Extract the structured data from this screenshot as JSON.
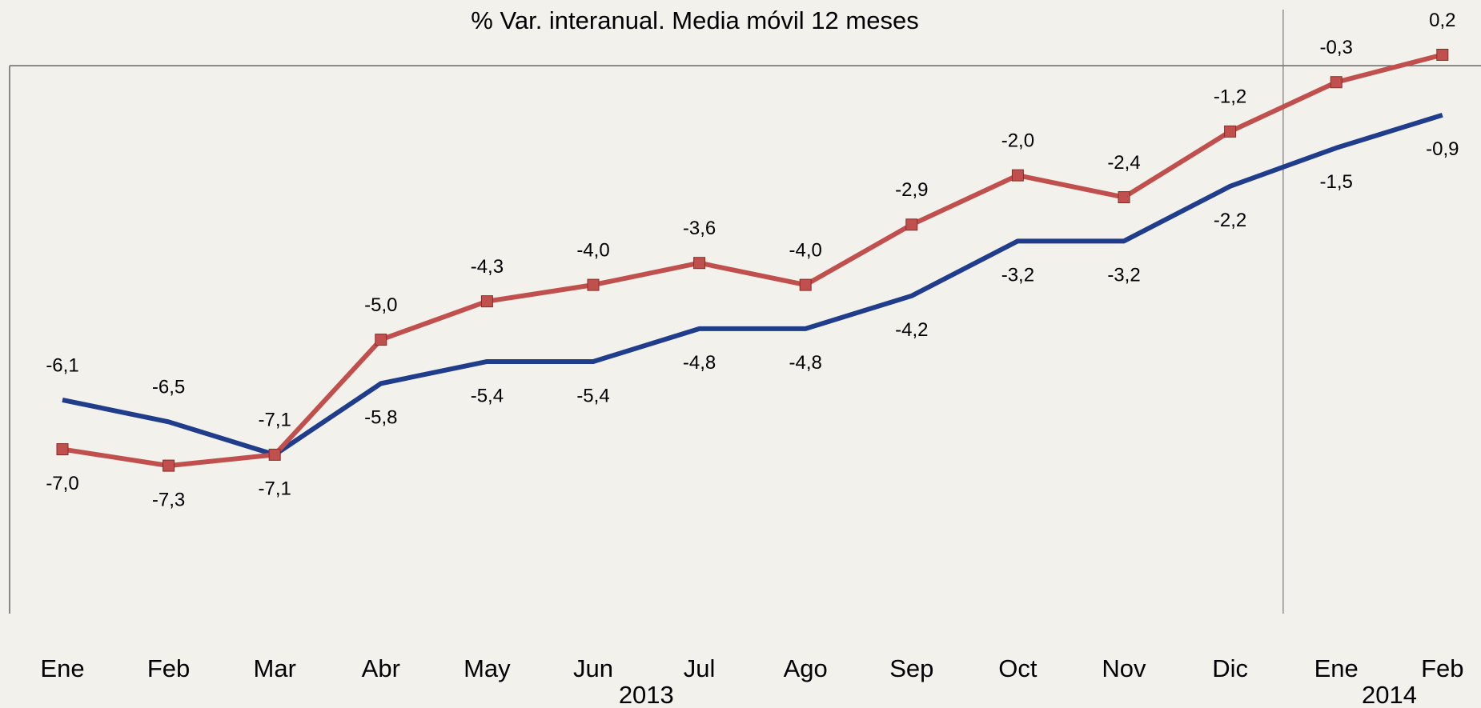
{
  "chart_data": {
    "type": "line",
    "title": "% Var. interanual. Media móvil 12 meses",
    "categories": [
      "Ene",
      "Feb",
      "Mar",
      "Abr",
      "May",
      "Jun",
      "Jul",
      "Ago",
      "Sep",
      "Oct",
      "Nov",
      "Dic",
      "Ene",
      "Feb"
    ],
    "groups": [
      {
        "label": "2013",
        "count": 12
      },
      {
        "label": "2014",
        "count": 2
      }
    ],
    "series": [
      {
        "color": "#1f3d8a",
        "marker": false,
        "values": [
          -6.1,
          -6.5,
          -7.1,
          -5.8,
          -5.4,
          -5.4,
          -4.8,
          -4.8,
          -4.2,
          -3.2,
          -3.2,
          -2.2,
          -1.5,
          -0.9
        ],
        "value_labels": [
          "-6,1",
          "-6,5",
          "-7,1",
          "-5,8",
          "-5,4",
          "-5,4",
          "-4,8",
          "-4,8",
          "-4,2",
          "-3,2",
          "-3,2",
          "-2,2",
          "-1,5",
          "-0,9"
        ]
      },
      {
        "color": "#c0504d",
        "marker": true,
        "values": [
          -7.0,
          -7.3,
          -7.1,
          -5.0,
          -4.3,
          -4.0,
          -3.6,
          -4.0,
          -2.9,
          -2.0,
          -2.4,
          -1.2,
          -0.3,
          0.2
        ],
        "value_labels": [
          "-7,0",
          "-7,3",
          "-7,1",
          "-5,0",
          "-4,3",
          "-4,0",
          "-3,6",
          "-4,0",
          "-2,9",
          "-2,0",
          "-2,4",
          "-1,2",
          "-0,3",
          "0,2"
        ]
      }
    ],
    "ylim": [
      -10.0,
      1.2
    ]
  }
}
